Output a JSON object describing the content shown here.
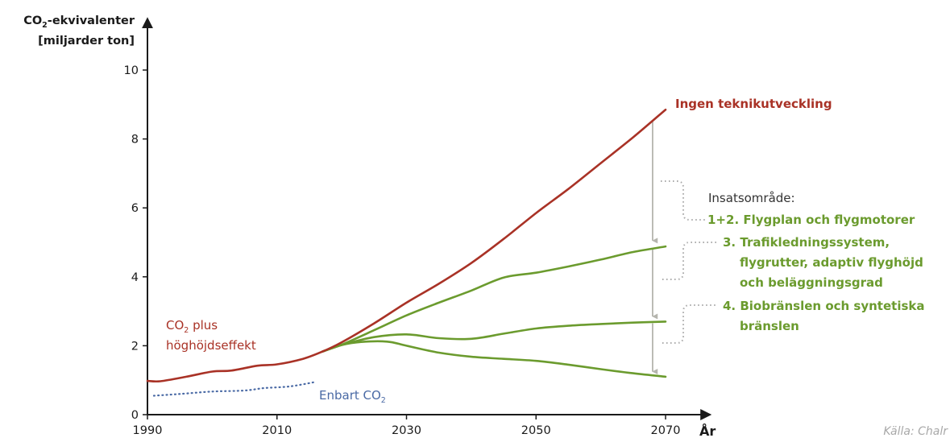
{
  "chart_data": {
    "type": "line",
    "y_axis_title_line1_main": "CO",
    "y_axis_title_line1_sub": "2",
    "y_axis_title_line1_rest": "-ekvivalenter",
    "y_axis_title_line2": "[miljarder ton]",
    "x_axis_title": "År",
    "xlim": [
      1990,
      2070
    ],
    "ylim": [
      0,
      10
    ],
    "x_ticks": [
      1990,
      2010,
      2030,
      2050,
      2070
    ],
    "y_ticks": [
      0,
      2,
      4,
      6,
      8,
      10
    ],
    "grid": false,
    "series": [
      {
        "name": "Ingen teknikutveckling",
        "color": "#a93226",
        "style": "solid",
        "points": [
          [
            1990,
            0.98
          ],
          [
            1992,
            0.97
          ],
          [
            1996,
            1.1
          ],
          [
            2000,
            1.25
          ],
          [
            2003,
            1.28
          ],
          [
            2007,
            1.42
          ],
          [
            2010,
            1.46
          ],
          [
            2014,
            1.62
          ],
          [
            2017,
            1.83
          ],
          [
            2020,
            2.1
          ],
          [
            2025,
            2.65
          ],
          [
            2030,
            3.25
          ],
          [
            2035,
            3.8
          ],
          [
            2040,
            4.4
          ],
          [
            2045,
            5.1
          ],
          [
            2050,
            5.85
          ],
          [
            2055,
            6.55
          ],
          [
            2060,
            7.3
          ],
          [
            2065,
            8.05
          ],
          [
            2070,
            8.85
          ]
        ]
      },
      {
        "name": "CO2 plus höghöjdseffekt",
        "color": "#a93226",
        "style": "solid",
        "points": []
      },
      {
        "name": "Enbart CO2",
        "color": "#4a6aa5",
        "style": "dotted",
        "points": [
          [
            1991,
            0.55
          ],
          [
            1995,
            0.6
          ],
          [
            2000,
            0.67
          ],
          [
            2005,
            0.7
          ],
          [
            2008,
            0.77
          ],
          [
            2012,
            0.82
          ],
          [
            2016,
            0.95
          ]
        ]
      },
      {
        "name": "1+2. Flygplan och flygmotorer",
        "color": "#6b9b2e",
        "style": "solid",
        "points": [
          [
            2017,
            1.83
          ],
          [
            2020,
            2.03
          ],
          [
            2025,
            2.45
          ],
          [
            2030,
            2.88
          ],
          [
            2035,
            3.25
          ],
          [
            2040,
            3.6
          ],
          [
            2045,
            3.98
          ],
          [
            2050,
            4.12
          ],
          [
            2055,
            4.3
          ],
          [
            2060,
            4.5
          ],
          [
            2065,
            4.72
          ],
          [
            2070,
            4.88
          ]
        ]
      },
      {
        "name": "3. Trafikledningssystem, flygrutter, adaptiv flyghöjd och beläggningsgrad",
        "color": "#6b9b2e",
        "style": "solid",
        "points": [
          [
            2017,
            1.83
          ],
          [
            2020,
            2.02
          ],
          [
            2025,
            2.25
          ],
          [
            2030,
            2.33
          ],
          [
            2035,
            2.22
          ],
          [
            2040,
            2.2
          ],
          [
            2045,
            2.35
          ],
          [
            2050,
            2.5
          ],
          [
            2055,
            2.58
          ],
          [
            2060,
            2.63
          ],
          [
            2065,
            2.67
          ],
          [
            2070,
            2.7
          ]
        ]
      },
      {
        "name": "4. Biobränslen och syntetiska bränslen",
        "color": "#6b9b2e",
        "style": "solid",
        "points": [
          [
            2017,
            1.83
          ],
          [
            2020,
            2.02
          ],
          [
            2023,
            2.11
          ],
          [
            2027,
            2.12
          ],
          [
            2030,
            2.0
          ],
          [
            2035,
            1.8
          ],
          [
            2040,
            1.68
          ],
          [
            2045,
            1.62
          ],
          [
            2050,
            1.56
          ],
          [
            2055,
            1.45
          ],
          [
            2060,
            1.32
          ],
          [
            2065,
            1.2
          ],
          [
            2070,
            1.1
          ]
        ]
      }
    ],
    "annotations": {
      "red_end_label": "Ingen teknikutveckling",
      "red_left_line1_main": "CO",
      "red_left_line1_sub": "2",
      "red_left_line1_rest": " plus",
      "red_left_line2": "höghöjdseffekt",
      "blue_label_main": "Enbart CO",
      "blue_label_sub": "2",
      "insats_title": "Insatsområde:",
      "item1": "1+2. Flygplan och flygmotorer",
      "item3_line1": "3. Trafikledningssystem,",
      "item3_line2": "flygrutter, adaptiv flyghöjd",
      "item3_line3": "och beläggningsgrad",
      "item4_line1": "4. Biobränslen och syntetiska",
      "item4_line2": "bränslen",
      "source": "Källa: Chalr"
    },
    "arrows": [
      {
        "x": 2068,
        "from": 8.55,
        "to": 5.05
      },
      {
        "x": 2068,
        "from": 4.8,
        "to": 2.85
      },
      {
        "x": 2068,
        "from": 2.65,
        "to": 1.25
      }
    ]
  }
}
